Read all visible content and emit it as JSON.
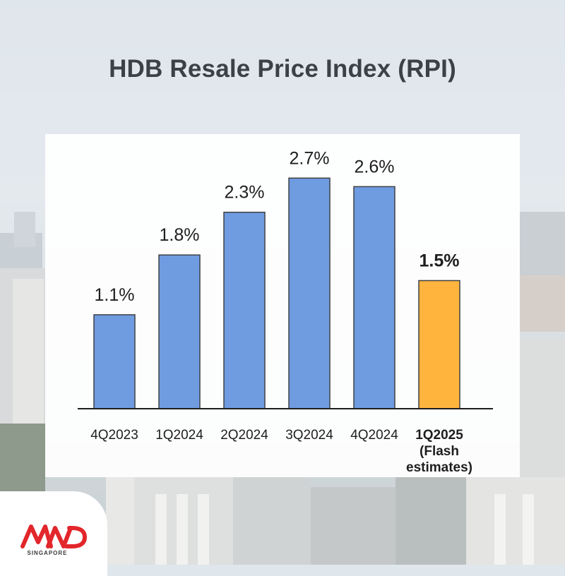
{
  "title": "HDB Resale Price Index (RPI)",
  "colors": {
    "bar": "#6f9be0",
    "highlight_bar": "#ffb43e",
    "bar_stroke": "#3f4246",
    "axis": "#1e1e1e",
    "logo_red": "#e2262b"
  },
  "logo": {
    "icon": "mnd-logo-icon",
    "subtitle": "SINGAPORE"
  },
  "chart_data": {
    "type": "bar",
    "title": "",
    "xlabel": "",
    "ylabel": "",
    "ylim": [
      0,
      3.0
    ],
    "grid": false,
    "legend": "none",
    "categories": [
      [
        "4Q2023"
      ],
      [
        "1Q2024"
      ],
      [
        "2Q2024"
      ],
      [
        "3Q2024"
      ],
      [
        "4Q2024"
      ],
      [
        "1Q2025",
        "(Flash",
        "estimates)"
      ]
    ],
    "values": [
      1.1,
      1.8,
      2.3,
      2.7,
      2.6,
      1.5
    ],
    "value_labels": [
      "1.1%",
      "1.8%",
      "2.3%",
      "2.7%",
      "2.6%",
      "1.5%"
    ],
    "highlight_index": 5
  }
}
